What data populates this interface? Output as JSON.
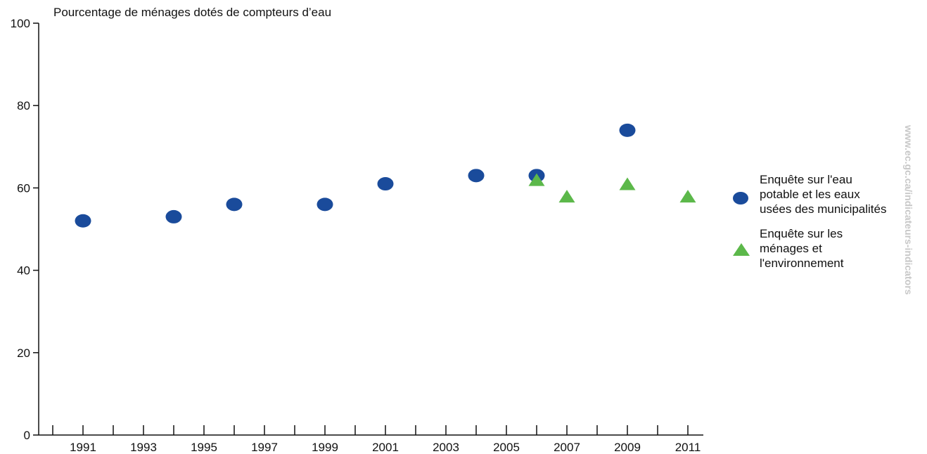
{
  "chart_data": {
    "type": "scatter",
    "title": "Pourcentage de ménages dotés de compteurs d’eau",
    "xlabel": "",
    "ylabel": "",
    "xlim": [
      1990,
      2012
    ],
    "ylim": [
      0,
      100
    ],
    "x_ticks": [
      1991,
      1993,
      1995,
      1997,
      1999,
      2001,
      2003,
      2005,
      2007,
      2009,
      2011
    ],
    "y_ticks": [
      0,
      20,
      40,
      60,
      80,
      100
    ],
    "grid": false,
    "legend_position": "right",
    "series": [
      {
        "name": "Enquête sur l'eau\npotable et les eaux\nusées des municipalités",
        "marker": "circle",
        "color": "#1a4b9b",
        "x": [
          1991,
          1994,
          1996,
          1999,
          2001,
          2004,
          2006,
          2009
        ],
        "y": [
          52,
          53,
          56,
          56,
          61,
          63,
          63,
          74
        ]
      },
      {
        "name": "Enquête sur les\nménages et\nl'environnement",
        "marker": "triangle",
        "color": "#5cb84a",
        "x": [
          2006,
          2007,
          2009,
          2011
        ],
        "y": [
          62,
          58,
          61,
          58
        ]
      }
    ]
  },
  "watermark": "www.ec.gc.ca/indicateurs-indicators"
}
